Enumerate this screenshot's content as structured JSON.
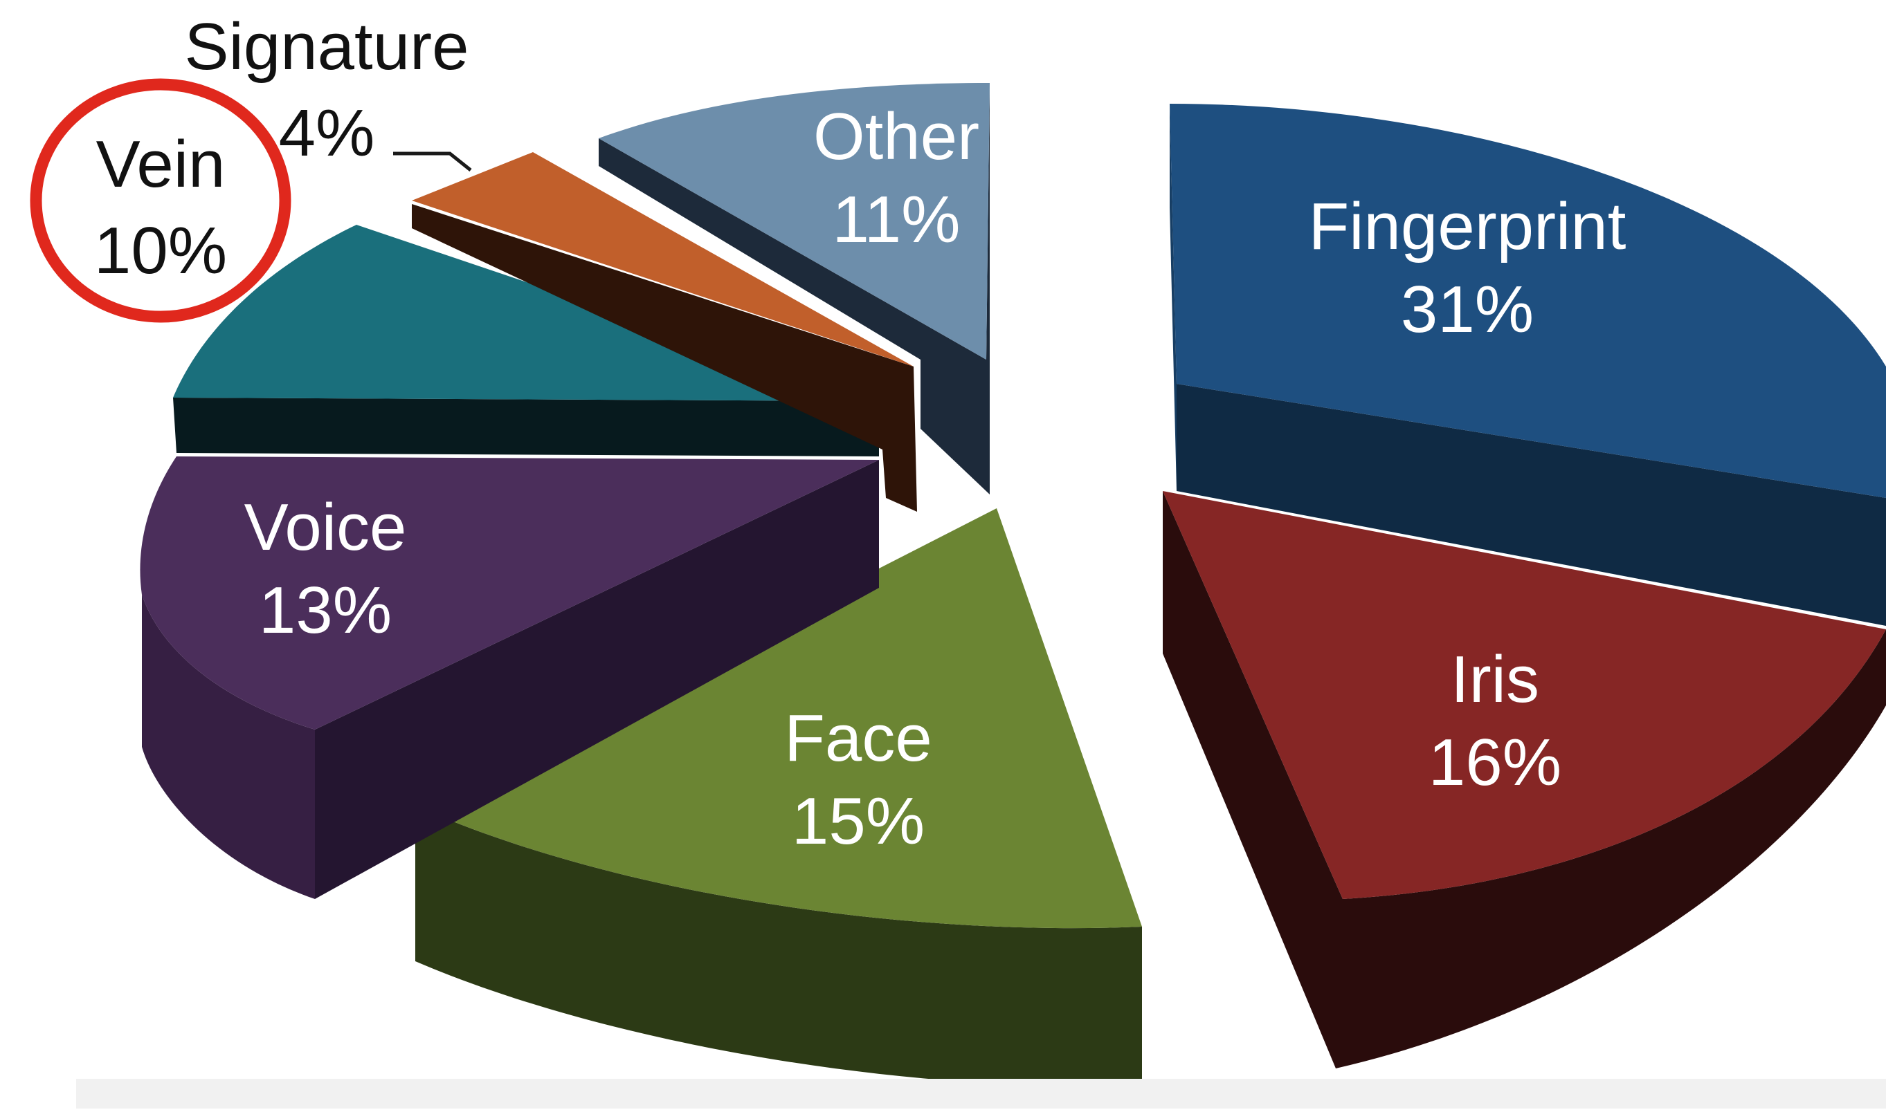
{
  "chart_data": {
    "type": "pie",
    "style": "3d-exploded",
    "slices": [
      {
        "label": "Fingerprint",
        "value_text": "31%",
        "value": 31,
        "top_color": "#1e4f80",
        "side_color": "#0f2a44"
      },
      {
        "label": "Iris",
        "value_text": "16%",
        "value": 16,
        "top_color": "#862625",
        "side_color": "#2a0c0c"
      },
      {
        "label": "Face",
        "value_text": "15%",
        "value": 15,
        "top_color": "#6b8533",
        "side_color": "#2c3a15"
      },
      {
        "label": "Voice",
        "value_text": "13%",
        "value": 13,
        "top_color": "#4b2e5b",
        "side_color": "#241530"
      },
      {
        "label": "Vein",
        "value_text": "10%",
        "value": 10,
        "top_color": "#1a6f7c",
        "side_color": "#071a1e"
      },
      {
        "label": "Signature",
        "value_text": "4%",
        "value": 4,
        "top_color": "#c15f2b",
        "side_color": "#2e1408"
      },
      {
        "label": "Other",
        "value_text": "11%",
        "value": 11,
        "top_color": "#6d8eab",
        "side_color": "#1d2a3a"
      }
    ],
    "highlight": {
      "slice": "Vein",
      "shape": "circle",
      "color": "#e0281d"
    }
  }
}
